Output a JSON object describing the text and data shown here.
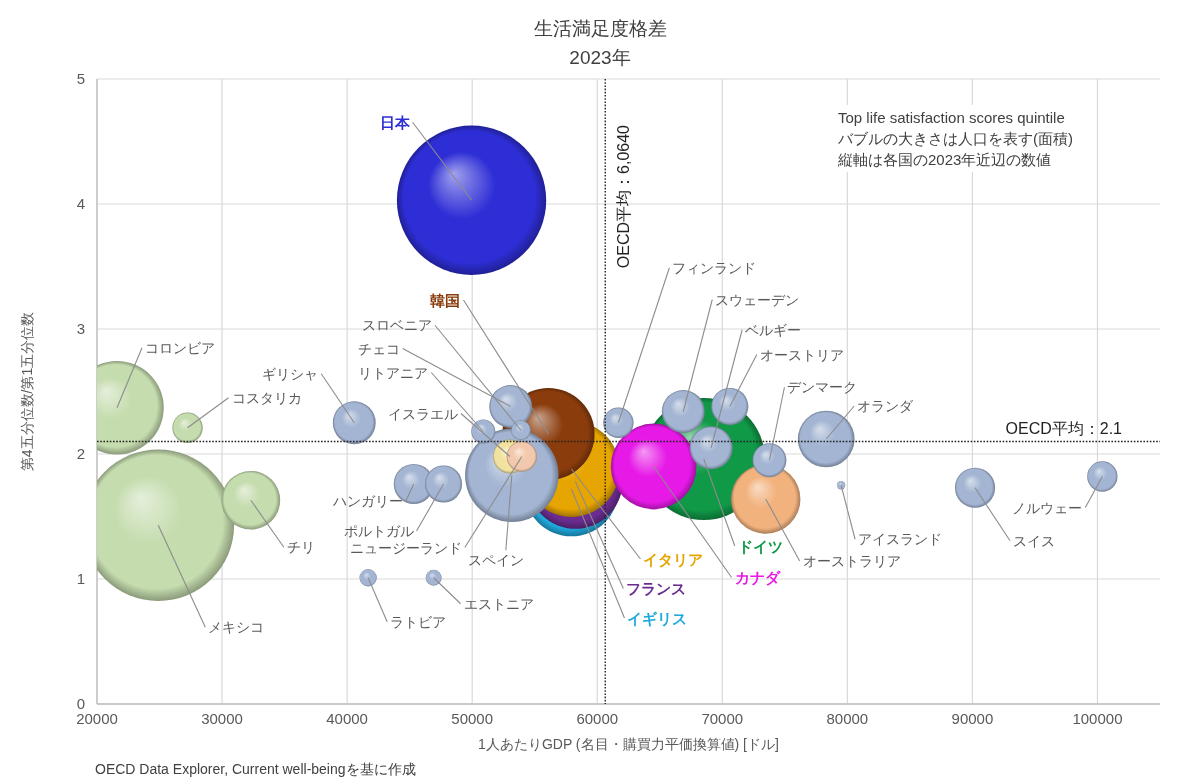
{
  "chart_data": {
    "type": "bubble",
    "title": "生活満足度格差",
    "subtitle": "2023年",
    "xlabel": "1人あたりGDP (名目・購買力平価換算値) [ドル]",
    "ylabel": "第4五分位数/第1五分位数",
    "xlim": [
      20000,
      105000
    ],
    "ylim": [
      0,
      5
    ],
    "xticks": [
      20000,
      30000,
      40000,
      50000,
      60000,
      70000,
      80000,
      90000,
      100000
    ],
    "yticks": [
      0,
      1,
      2,
      3,
      4,
      5
    ],
    "grid": true,
    "ref_lines": [
      {
        "axis": "x",
        "value": 60640,
        "label": "OECD平均：6,0640",
        "color": "#222222",
        "line_style": "dotted"
      },
      {
        "axis": "y",
        "value": 2.1,
        "label": "OECD平均：2.1",
        "color": "#222222",
        "line_style": "dotted"
      }
    ],
    "annotations": [
      "Top life satisfaction scores quintile\nバブルの大きさは人口を表す(面積)\n縦軸は各国の2023年近辺の数値",
      "OECD Data Explorer, Current well-beingを基に作成"
    ],
    "series": [
      {
        "name": "イギリス",
        "color": "#1fa9dc",
        "x": [
          57940
        ],
        "values": [
          1.72
        ],
        "sizes": [
          0.39
        ]
      },
      {
        "name": "フランス",
        "color": "#6b2c91",
        "x": [
          58250
        ],
        "values": [
          1.78
        ],
        "sizes": [
          0.39
        ]
      },
      {
        "name": "イタリア",
        "color": "#e6a500",
        "x": [
          57940
        ],
        "values": [
          1.88
        ],
        "sizes": [
          0.4
        ]
      },
      {
        "name": "ドイツ",
        "color": "#109a48",
        "x": [
          68520
        ],
        "values": [
          1.96
        ],
        "sizes": [
          0.65
        ]
      },
      {
        "name": "韓国",
        "color": "#8a3c0c",
        "x": [
          56100
        ],
        "values": [
          2.16
        ],
        "sizes": [
          0.37
        ]
      },
      {
        "name": "カナダ",
        "color": "#e619e6",
        "x": [
          64510
        ],
        "values": [
          1.9
        ],
        "sizes": [
          0.32
        ]
      },
      {
        "name": "日本",
        "color": "#2e2ed6",
        "x": [
          49950
        ],
        "values": [
          4.03
        ],
        "sizes": [
          0.97
        ]
      },
      {
        "name": "オーストラリア",
        "color": "#f2b27e",
        "x": [
          73470
        ],
        "values": [
          1.64
        ],
        "sizes": [
          0.21
        ]
      },
      {
        "name": "コロンビア",
        "color": "#c5dcae",
        "x": [
          21600
        ],
        "values": [
          2.37
        ],
        "sizes": [
          0.38
        ]
      },
      {
        "name": "メキシコ",
        "color": "#c5dcae",
        "x": [
          24900
        ],
        "values": [
          1.43
        ],
        "sizes": [
          1.0
        ]
      },
      {
        "name": "チリ",
        "color": "#c5dcae",
        "x": [
          32300
        ],
        "values": [
          1.63
        ],
        "sizes": [
          0.15
        ]
      },
      {
        "name": "コスタリカ",
        "color": "#c5dcae",
        "x": [
          27240
        ],
        "values": [
          2.21
        ],
        "sizes": [
          0.04
        ]
      },
      {
        "name": "ギリシャ",
        "color": "#a3b5d3",
        "x": [
          40570
        ],
        "values": [
          2.25
        ],
        "sizes": [
          0.08
        ]
      },
      {
        "name": "ハンガリー",
        "color": "#a3b5d3",
        "x": [
          45330
        ],
        "values": [
          1.76
        ],
        "sizes": [
          0.07
        ]
      },
      {
        "name": "ポルトガル",
        "color": "#a3b5d3",
        "x": [
          47710
        ],
        "values": [
          1.76
        ],
        "sizes": [
          0.06
        ]
      },
      {
        "name": "ラトビア",
        "color": "#a3b5d3",
        "x": [
          41680
        ],
        "values": [
          1.01
        ],
        "sizes": [
          0.013
        ]
      },
      {
        "name": "エストニア",
        "color": "#a3b5d3",
        "x": [
          46920
        ],
        "values": [
          1.01
        ],
        "sizes": [
          0.011
        ]
      },
      {
        "name": "フィンランド",
        "color": "#a3b5d3",
        "x": [
          61690
        ],
        "values": [
          2.25
        ],
        "sizes": [
          0.04
        ]
      },
      {
        "name": "スウェーデン",
        "color": "#a3b5d3",
        "x": [
          66880
        ],
        "values": [
          2.34
        ],
        "sizes": [
          0.08
        ]
      },
      {
        "name": "ベルギー",
        "color": "#a3b5d3",
        "x": [
          69110
        ],
        "values": [
          2.05
        ],
        "sizes": [
          0.08
        ]
      },
      {
        "name": "オーストリア",
        "color": "#a3b5d3",
        "x": [
          70600
        ],
        "values": [
          2.38
        ],
        "sizes": [
          0.06
        ]
      },
      {
        "name": "デンマーク",
        "color": "#a3b5d3",
        "x": [
          73770
        ],
        "values": [
          1.95
        ],
        "sizes": [
          0.05
        ]
      },
      {
        "name": "オランダ",
        "color": "#a3b5d3",
        "x": [
          78310
        ],
        "values": [
          2.12
        ],
        "sizes": [
          0.14
        ]
      },
      {
        "name": "アイスランド",
        "color": "#a3b5d3",
        "x": [
          79500
        ],
        "values": [
          1.75
        ],
        "sizes": [
          0.003
        ]
      },
      {
        "name": "スイス",
        "color": "#a3b5d3",
        "x": [
          90210
        ],
        "values": [
          1.73
        ],
        "sizes": [
          0.07
        ]
      },
      {
        "name": "ノルウェー",
        "color": "#a3b5d3",
        "x": [
          100390
        ],
        "values": [
          1.82
        ],
        "sizes": [
          0.04
        ]
      },
      {
        "name": "スペイン",
        "color": "#a3b5d3",
        "x": [
          53170
        ],
        "values": [
          1.83
        ],
        "sizes": [
          0.38
        ]
      },
      {
        "name": "チェコ",
        "color": "#a3b5d3",
        "x": [
          53080
        ],
        "values": [
          2.38
        ],
        "sizes": [
          0.08
        ]
      },
      {
        "name": "イスラエル",
        "color": "#f2e2a0",
        "x": [
          53020
        ],
        "values": [
          1.98
        ],
        "sizes": [
          0.05
        ]
      },
      {
        "name": "ニュージーランド",
        "color": "#f3c9ad",
        "x": [
          53970
        ],
        "values": [
          1.98
        ],
        "sizes": [
          0.04
        ]
      },
      {
        "name": "リトアニア",
        "color": "#a3b5d3",
        "x": [
          50890
        ],
        "values": [
          2.18
        ],
        "sizes": [
          0.025
        ]
      },
      {
        "name": "スロベニア",
        "color": "#a3b5d3",
        "x": [
          53900
        ],
        "values": [
          2.19
        ],
        "sizes": [
          0.017
        ]
      }
    ]
  }
}
